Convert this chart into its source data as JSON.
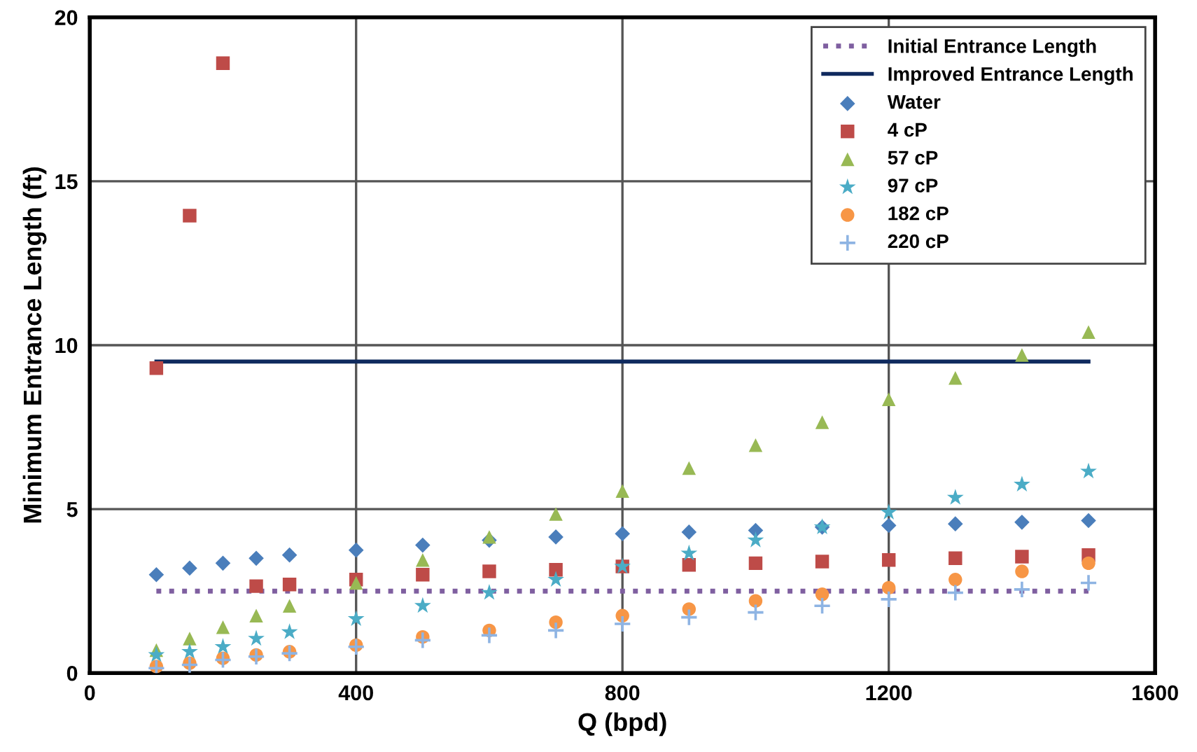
{
  "chart_data": {
    "type": "scatter",
    "xlabel": "Q (bpd)",
    "ylabel": "Minimum Entrance Length (ft)",
    "x": [
      100,
      150,
      200,
      250,
      300,
      400,
      500,
      600,
      700,
      800,
      900,
      1000,
      1100,
      1200,
      1300,
      1400,
      1500
    ],
    "xlim": [
      0,
      1600
    ],
    "xticks": [
      0,
      400,
      800,
      1200,
      1600
    ],
    "ylim": [
      0,
      20
    ],
    "yticks": [
      0,
      5,
      10,
      15,
      20
    ],
    "grid": true,
    "legend": "top right",
    "series": [
      {
        "name": "Initial Entrance Length",
        "type": "line",
        "line_style": "dotted",
        "marker": "none",
        "color": "#7f5fa0",
        "values": [
          2.5,
          2.5,
          2.5,
          2.5,
          2.5,
          2.5,
          2.5,
          2.5,
          2.5,
          2.5,
          2.5,
          2.5,
          2.5,
          2.5,
          2.5,
          2.5,
          2.5
        ]
      },
      {
        "name": "Improved Entrance Length",
        "type": "line",
        "line_style": "solid",
        "marker": "none",
        "color": "#0f2a5e",
        "values": [
          9.5,
          9.5,
          9.5,
          9.5,
          9.5,
          9.5,
          9.5,
          9.5,
          9.5,
          9.5,
          9.5,
          9.5,
          9.5,
          9.5,
          9.5,
          9.5,
          9.5
        ]
      },
      {
        "name": "Water",
        "marker": "diamond",
        "color": "#4a7ebb",
        "values": [
          3.0,
          3.2,
          3.35,
          3.5,
          3.6,
          3.75,
          3.9,
          4.05,
          4.15,
          4.25,
          4.3,
          4.35,
          4.45,
          4.5,
          4.55,
          4.6,
          4.65
        ]
      },
      {
        "name": "4 cP",
        "marker": "square",
        "color": "#be4b48",
        "values": [
          9.3,
          13.95,
          18.6,
          2.65,
          2.7,
          2.85,
          3.0,
          3.1,
          3.15,
          3.25,
          3.3,
          3.35,
          3.4,
          3.45,
          3.5,
          3.55,
          3.6
        ]
      },
      {
        "name": "57 cP",
        "marker": "triangle",
        "color": "#98b954",
        "values": [
          0.7,
          1.05,
          1.4,
          1.75,
          2.05,
          2.75,
          3.45,
          4.15,
          4.85,
          5.55,
          6.25,
          6.95,
          7.65,
          8.35,
          9.0,
          9.7,
          10.4
        ]
      },
      {
        "name": "97 cP",
        "marker": "star",
        "color": "#4bacc6",
        "values": [
          0.55,
          0.65,
          0.8,
          1.05,
          1.25,
          1.65,
          2.05,
          2.45,
          2.85,
          3.25,
          3.65,
          4.05,
          4.45,
          4.9,
          5.35,
          5.75,
          6.15
        ]
      },
      {
        "name": "182 cP",
        "marker": "circle",
        "color": "#f79646",
        "values": [
          0.2,
          0.3,
          0.45,
          0.55,
          0.65,
          0.85,
          1.1,
          1.3,
          1.55,
          1.75,
          1.95,
          2.2,
          2.4,
          2.6,
          2.85,
          3.1,
          3.35
        ]
      },
      {
        "name": "220 cP",
        "marker": "cross",
        "color": "#8eb4e3",
        "values": [
          0.15,
          0.25,
          0.4,
          0.5,
          0.6,
          0.8,
          1.0,
          1.15,
          1.3,
          1.5,
          1.7,
          1.85,
          2.05,
          2.25,
          2.45,
          2.55,
          2.75
        ]
      }
    ]
  }
}
